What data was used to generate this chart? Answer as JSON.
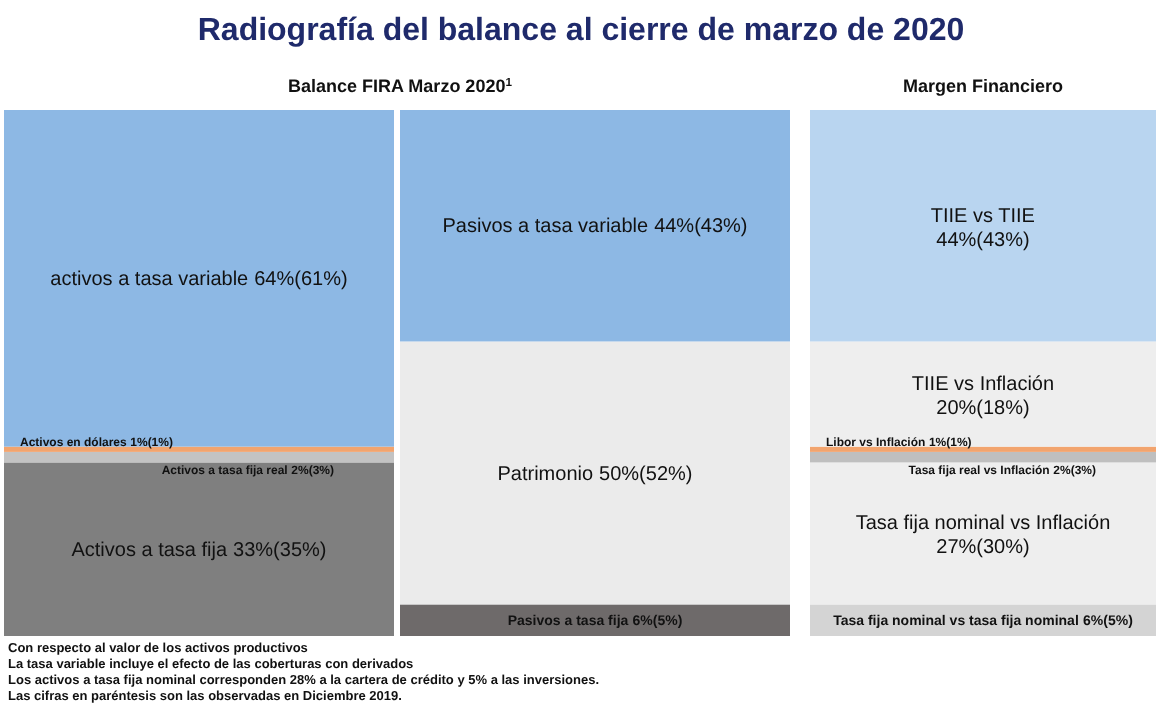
{
  "chart_data": [
    {
      "type": "bar",
      "stacked": true,
      "title": "Radiografía del balance al cierre de marzo de 2020",
      "subtitle": "Balance FIRA Marzo 2020$^{1}$",
      "categories": [
        null
      ],
      "series": [
        {
          "name": "Activos a tasa fija",
          "color": "#7f7f7f",
          "values": [
            33
          ],
          "value_labels": [
            "33%(35%)"
          ]
        },
        {
          "name": "Activos a tasa fija real",
          "color": "#c3c3c3",
          "values": [
            2
          ],
          "value_labels": [
            "2%(3%)"
          ]
        },
        {
          "name": "Activos en dólares",
          "color": "#f2a46e",
          "values": [
            1
          ],
          "value_labels": [
            "1%(1%)"
          ]
        },
        {
          "name": "activos a tasa variable",
          "color": "#8db8e4",
          "values": [
            64
          ],
          "value_labels": [
            "64%(61%)"
          ]
        }
      ],
      "annotations": [
        "Con respecto al valor de los activos productivos",
        "La tasa variable incluye el efecto de las coberturas con derivados",
        "Los activos a tasa fija nominal corresponden 28% a la cartera de crédito y 5% a las inversiones.",
        "Las cifras en paréntesis son las observadas en Diciembre 2019."
      ]
    },
    {
      "type": "bar",
      "stacked": true,
      "categories": [
        null
      ],
      "series": [
        {
          "name": "Pasivos a tasa fija",
          "color": "#6e6a6a",
          "values": [
            6
          ],
          "value_labels": [
            "6%(5%)"
          ]
        },
        {
          "name": "Patrimonio",
          "color": "#ebebeb",
          "values": [
            50
          ],
          "value_labels": [
            "50%(52%)"
          ]
        },
        {
          "name": "Pasivos a tasa variable",
          "color": "#8db8e4",
          "values": [
            44
          ],
          "value_labels": [
            "44%(43%)"
          ]
        }
      ]
    },
    {
      "type": "bar",
      "stacked": true,
      "title": "Margen Financiero",
      "categories": [
        null
      ],
      "series": [
        {
          "name": "Tasa fija nominal vs tasa fija nominal",
          "color": "#d4d4d4",
          "values": [
            6
          ],
          "value_labels": [
            "6%(5%)"
          ]
        },
        {
          "name": "Tasa fija nominal vs Inflación",
          "color": "#eeeeee",
          "values": [
            27
          ],
          "value_labels": [
            "27%(30%)"
          ]
        },
        {
          "name": "Tasa fija real vs Inflación",
          "color": "#bfbfbf",
          "values": [
            2
          ],
          "value_labels": [
            "2%(3%)"
          ]
        },
        {
          "name": "Libor vs Inflación",
          "color": "#f2a46e",
          "values": [
            1
          ],
          "value_labels": [
            "1%(1%)"
          ]
        },
        {
          "name": "TIIE vs Inflación",
          "color": "#eeeeee",
          "values": [
            20
          ],
          "value_labels": [
            "20%(18%)"
          ]
        },
        {
          "name": "TIIE vs TIIE",
          "color": "#b9d5f0",
          "values": [
            44
          ],
          "value_labels": [
            "44%(43%)"
          ]
        }
      ]
    }
  ]
}
